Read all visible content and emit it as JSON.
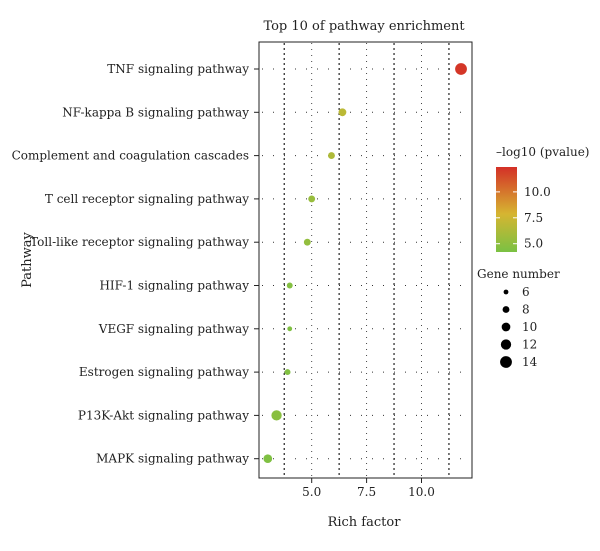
{
  "chart_data": {
    "type": "scatter",
    "title": "Top 10 of pathway enrichment",
    "xlabel": "Rich factor",
    "ylabel": "Pathway",
    "xlim": [
      2.6,
      12.3
    ],
    "xticks": [
      5.0,
      7.5,
      10.0
    ],
    "xtick_labels": [
      "5.0",
      "7.5",
      "10.0"
    ],
    "grid": true,
    "categories": [
      "TNF signaling pathway",
      "NF-kappa B signaling pathway",
      "Complement and coagulation cascades",
      "T cell receptor signaling pathway",
      "Toll-like receptor signaling pathway",
      "HIF-1 signaling pathway",
      "VEGF signaling pathway",
      "Estrogen signaling pathway",
      "P13K-Akt signaling pathway",
      "MAPK signaling pathway"
    ],
    "points": [
      {
        "pathway": "TNF signaling pathway",
        "rich_factor": 11.8,
        "gene_number": 14,
        "neg_log10_p": 12.2
      },
      {
        "pathway": "NF-kappa B signaling pathway",
        "rich_factor": 6.4,
        "gene_number": 9,
        "neg_log10_p": 6.8
      },
      {
        "pathway": "Complement and coagulation cascades",
        "rich_factor": 5.9,
        "gene_number": 8,
        "neg_log10_p": 6.3
      },
      {
        "pathway": "T cell receptor signaling pathway",
        "rich_factor": 5.0,
        "gene_number": 8,
        "neg_log10_p": 5.4
      },
      {
        "pathway": "Toll-like receptor signaling pathway",
        "rich_factor": 4.8,
        "gene_number": 8,
        "neg_log10_p": 5.2
      },
      {
        "pathway": "HIF-1 signaling pathway",
        "rich_factor": 4.0,
        "gene_number": 7,
        "neg_log10_p": 4.6
      },
      {
        "pathway": "VEGF signaling pathway",
        "rich_factor": 4.0,
        "gene_number": 6,
        "neg_log10_p": 4.4
      },
      {
        "pathway": "Estrogen signaling pathway",
        "rich_factor": 3.9,
        "gene_number": 7,
        "neg_log10_p": 4.5
      },
      {
        "pathway": "P13K-Akt signaling pathway",
        "rich_factor": 3.4,
        "gene_number": 12,
        "neg_log10_p": 4.8
      },
      {
        "pathway": "MAPK signaling pathway",
        "rich_factor": 3.0,
        "gene_number": 10,
        "neg_log10_p": 4.4
      }
    ],
    "color_legend": {
      "title": "–log10 (pvalue)",
      "range": [
        4.2,
        12.4
      ],
      "ticks": [
        5.0,
        7.5,
        10.0
      ],
      "tick_labels": [
        "5.0",
        "7.5",
        "10.0"
      ],
      "low_color": "#7ac143",
      "mid_color": "#d6b531",
      "high_color": "#d43027"
    },
    "size_legend": {
      "title": "Gene number",
      "values": [
        6,
        8,
        10,
        12,
        14
      ],
      "labels": [
        "6",
        "8",
        "10",
        "12",
        "14"
      ]
    },
    "legend_position": "right"
  }
}
